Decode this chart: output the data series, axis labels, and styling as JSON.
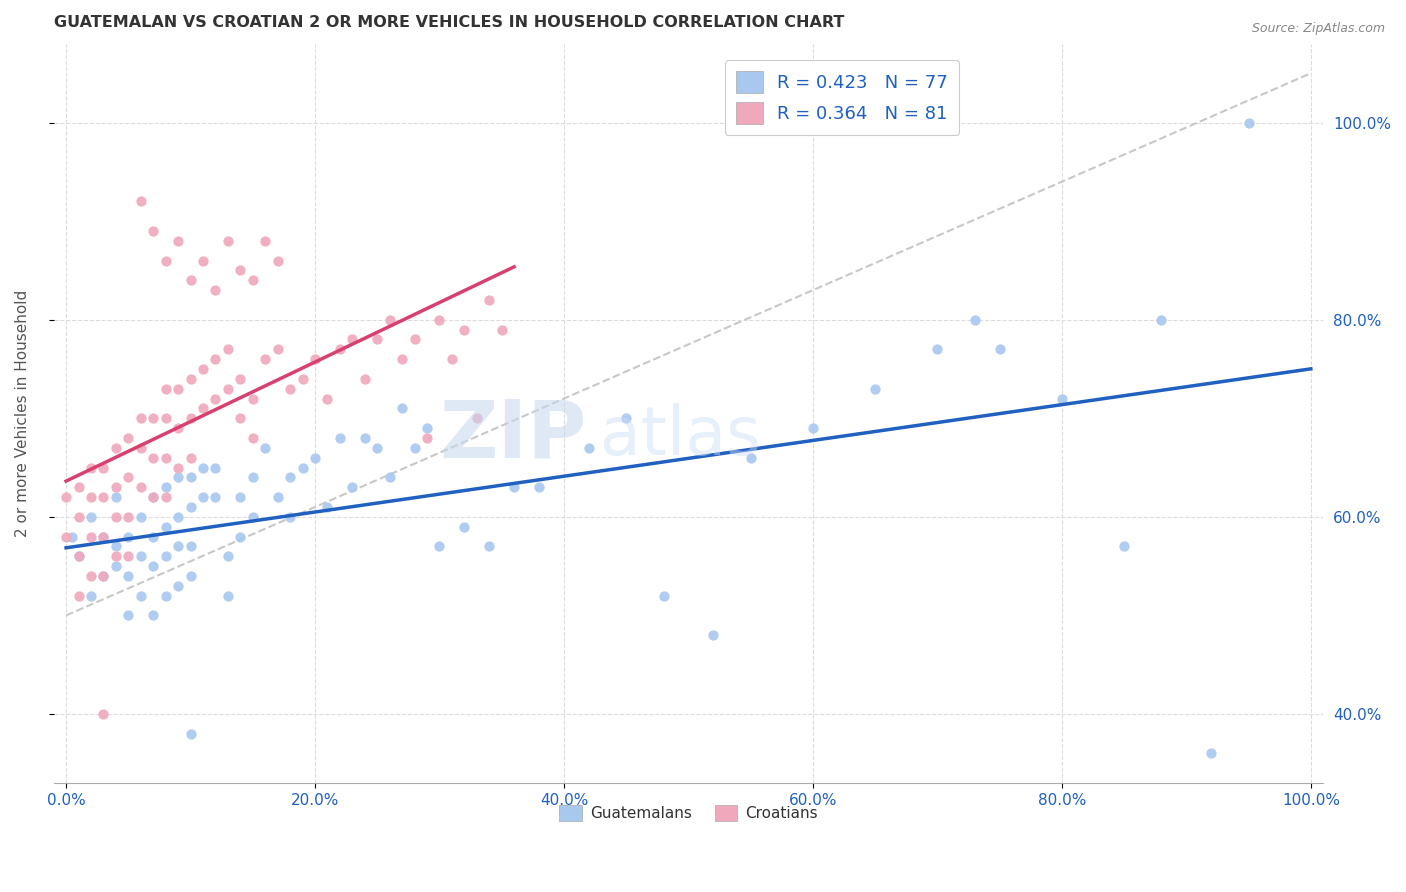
{
  "title": "GUATEMALAN VS CROATIAN 2 OR MORE VEHICLES IN HOUSEHOLD CORRELATION CHART",
  "source": "Source: ZipAtlas.com",
  "ylabel": "2 or more Vehicles in Household",
  "blue_color": "#A8C8F0",
  "pink_color": "#F0A8BC",
  "blue_line_color": "#2060C0",
  "pink_line_color": "#D84070",
  "dashed_line_color": "#C8C8C8",
  "legend_blue_label": "R = 0.423   N = 77",
  "legend_pink_label": "R = 0.364   N = 81",
  "legend_text_color": "#2060C0",
  "watermark_zip": "ZIP",
  "watermark_atlas": "atlas",
  "grid_color": "#DCDCDC",
  "background_color": "#FFFFFF",
  "xlim": [
    -0.01,
    1.01
  ],
  "ylim": [
    0.33,
    1.08
  ],
  "xtick_vals": [
    0.0,
    0.2,
    0.4,
    0.6,
    0.8,
    1.0
  ],
  "ytick_vals": [
    0.4,
    0.6,
    0.8,
    1.0
  ],
  "blue_x": [
    0.005,
    0.01,
    0.02,
    0.02,
    0.03,
    0.03,
    0.04,
    0.04,
    0.04,
    0.05,
    0.05,
    0.05,
    0.06,
    0.06,
    0.06,
    0.07,
    0.07,
    0.07,
    0.07,
    0.08,
    0.08,
    0.08,
    0.08,
    0.09,
    0.09,
    0.09,
    0.09,
    0.1,
    0.1,
    0.1,
    0.1,
    0.11,
    0.11,
    0.12,
    0.12,
    0.13,
    0.13,
    0.14,
    0.14,
    0.15,
    0.15,
    0.16,
    0.17,
    0.18,
    0.18,
    0.19,
    0.2,
    0.21,
    0.22,
    0.23,
    0.24,
    0.25,
    0.26,
    0.27,
    0.28,
    0.29,
    0.3,
    0.32,
    0.34,
    0.36,
    0.38,
    0.42,
    0.45,
    0.48,
    0.52,
    0.55,
    0.6,
    0.65,
    0.7,
    0.73,
    0.75,
    0.8,
    0.85,
    0.88,
    0.92,
    0.95,
    0.1
  ],
  "blue_y": [
    0.58,
    0.56,
    0.6,
    0.52,
    0.58,
    0.54,
    0.57,
    0.62,
    0.55,
    0.58,
    0.54,
    0.5,
    0.6,
    0.56,
    0.52,
    0.62,
    0.58,
    0.55,
    0.5,
    0.63,
    0.59,
    0.56,
    0.52,
    0.64,
    0.6,
    0.57,
    0.53,
    0.64,
    0.61,
    0.57,
    0.54,
    0.65,
    0.62,
    0.65,
    0.62,
    0.56,
    0.52,
    0.58,
    0.62,
    0.64,
    0.6,
    0.67,
    0.62,
    0.64,
    0.6,
    0.65,
    0.66,
    0.61,
    0.68,
    0.63,
    0.68,
    0.67,
    0.64,
    0.71,
    0.67,
    0.69,
    0.57,
    0.59,
    0.57,
    0.63,
    0.63,
    0.67,
    0.7,
    0.52,
    0.48,
    0.66,
    0.69,
    0.73,
    0.77,
    0.8,
    0.77,
    0.72,
    0.57,
    0.8,
    0.36,
    1.0,
    0.38
  ],
  "pink_x": [
    0.0,
    0.0,
    0.01,
    0.01,
    0.01,
    0.01,
    0.02,
    0.02,
    0.02,
    0.02,
    0.03,
    0.03,
    0.03,
    0.03,
    0.04,
    0.04,
    0.04,
    0.04,
    0.05,
    0.05,
    0.05,
    0.05,
    0.06,
    0.06,
    0.06,
    0.07,
    0.07,
    0.07,
    0.08,
    0.08,
    0.08,
    0.08,
    0.09,
    0.09,
    0.09,
    0.1,
    0.1,
    0.1,
    0.11,
    0.11,
    0.12,
    0.12,
    0.13,
    0.13,
    0.14,
    0.14,
    0.15,
    0.15,
    0.16,
    0.17,
    0.18,
    0.19,
    0.2,
    0.21,
    0.22,
    0.23,
    0.24,
    0.25,
    0.26,
    0.27,
    0.28,
    0.29,
    0.3,
    0.31,
    0.32,
    0.33,
    0.34,
    0.35,
    0.06,
    0.07,
    0.08,
    0.09,
    0.1,
    0.11,
    0.12,
    0.13,
    0.14,
    0.15,
    0.16,
    0.17,
    0.03
  ],
  "pink_y": [
    0.62,
    0.58,
    0.63,
    0.6,
    0.56,
    0.52,
    0.65,
    0.62,
    0.58,
    0.54,
    0.65,
    0.62,
    0.58,
    0.54,
    0.67,
    0.63,
    0.6,
    0.56,
    0.68,
    0.64,
    0.6,
    0.56,
    0.7,
    0.67,
    0.63,
    0.7,
    0.66,
    0.62,
    0.73,
    0.7,
    0.66,
    0.62,
    0.73,
    0.69,
    0.65,
    0.74,
    0.7,
    0.66,
    0.75,
    0.71,
    0.76,
    0.72,
    0.77,
    0.73,
    0.74,
    0.7,
    0.72,
    0.68,
    0.76,
    0.77,
    0.73,
    0.74,
    0.76,
    0.72,
    0.77,
    0.78,
    0.74,
    0.78,
    0.8,
    0.76,
    0.78,
    0.68,
    0.8,
    0.76,
    0.79,
    0.7,
    0.82,
    0.79,
    0.92,
    0.89,
    0.86,
    0.88,
    0.84,
    0.86,
    0.83,
    0.88,
    0.85,
    0.84,
    0.88,
    0.86,
    0.4
  ]
}
